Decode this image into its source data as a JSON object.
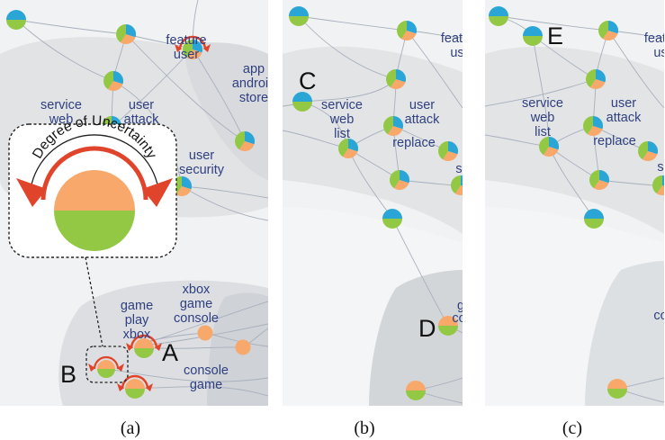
{
  "colors": {
    "topic_blue": "#2aa6d6",
    "orange": "#f8a86a",
    "green": "#93c844",
    "uncertainty_red": "#e0452b",
    "edge": "#a8b0bd",
    "label": "#2f3f80",
    "region": "#d5d7da"
  },
  "panels": [
    {
      "id": "a",
      "caption": "(a)",
      "labels": [
        {
          "id": "feature-user",
          "lines": [
            "feature",
            "user"
          ]
        },
        {
          "id": "app-android-store",
          "lines": [
            "app",
            "android",
            "store"
          ]
        },
        {
          "id": "service-web",
          "lines": [
            "service",
            "web"
          ]
        },
        {
          "id": "user-attack",
          "lines": [
            "user",
            "attack"
          ]
        },
        {
          "id": "user-security",
          "lines": [
            "user",
            "security"
          ]
        },
        {
          "id": "xbox-game-console",
          "lines": [
            "xbox",
            "game",
            "console"
          ]
        },
        {
          "id": "game-play-xbox",
          "lines": [
            "game",
            "play",
            "xbox"
          ]
        },
        {
          "id": "console-game",
          "lines": [
            "console",
            "game"
          ]
        }
      ],
      "markers": [
        {
          "id": "A",
          "text": "A"
        },
        {
          "id": "B",
          "text": "B"
        }
      ],
      "inset": {
        "title": "Degree of Uncertainty"
      }
    },
    {
      "id": "b",
      "caption": "(b)",
      "labels": [
        {
          "id": "feature-user-cut",
          "lines": [
            "featu",
            "us"
          ]
        },
        {
          "id": "service-web-list",
          "lines": [
            "service",
            "web",
            "list"
          ]
        },
        {
          "id": "user-attack",
          "lines": [
            "user",
            "attack"
          ]
        },
        {
          "id": "replace",
          "lines": [
            "replace"
          ]
        },
        {
          "id": "s-cut",
          "lines": [
            "s"
          ]
        },
        {
          "id": "game-cut",
          "lines": [
            "g",
            "co"
          ]
        }
      ],
      "markers": [
        {
          "id": "C",
          "text": "C"
        },
        {
          "id": "D",
          "text": "D"
        }
      ]
    },
    {
      "id": "c",
      "caption": "(c)",
      "labels": [
        {
          "id": "feature-cut",
          "lines": [
            "featu",
            "us"
          ]
        },
        {
          "id": "service-web-list",
          "lines": [
            "service",
            "web",
            "list"
          ]
        },
        {
          "id": "user-attack",
          "lines": [
            "user",
            "attack"
          ]
        },
        {
          "id": "replace",
          "lines": [
            "replace"
          ]
        },
        {
          "id": "s-cut",
          "lines": [
            "s"
          ]
        },
        {
          "id": "co-cut",
          "lines": [
            "co"
          ]
        }
      ],
      "markers": [
        {
          "id": "E",
          "text": "E"
        }
      ]
    }
  ]
}
